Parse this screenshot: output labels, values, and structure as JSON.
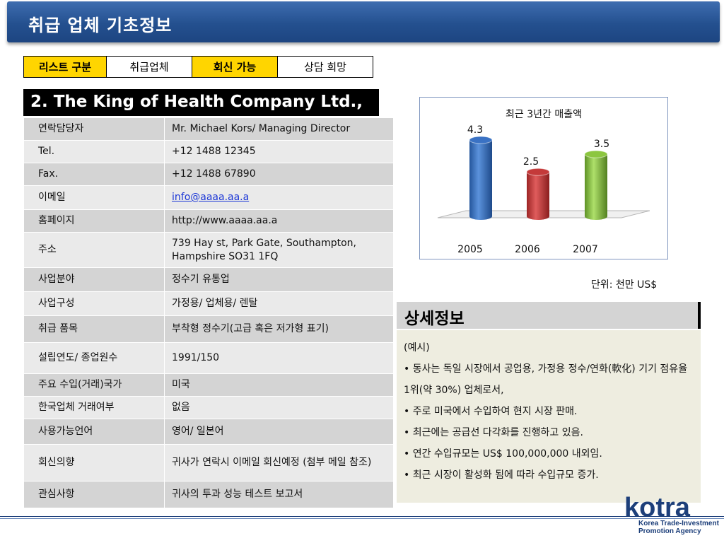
{
  "header": {
    "title": "취급 업체 기초정보"
  },
  "legend": [
    "리스트 구분",
    "취급업체",
    "회신 가능",
    "상담 희망"
  ],
  "company": {
    "title": "2. The King of Health Company Ltd.,"
  },
  "info": [
    {
      "label": "연락담당자",
      "value": "Mr. Michael Kors/ Managing Director"
    },
    {
      "label": "Tel.",
      "value": "+12 1488 12345"
    },
    {
      "label": "Fax.",
      "value": "+12 1488 67890"
    },
    {
      "label": "이메일",
      "value": "info@aaaa.aa.a"
    },
    {
      "label": "홈페이지",
      "value": "http://www.aaaa.aa.a"
    },
    {
      "label": "주소",
      "value": "739 Hay st, Park Gate, Southampton, Hampshire SO31 1FQ"
    },
    {
      "label": "사업분야",
      "value": "정수기 유통업"
    },
    {
      "label": "사업구성",
      "value": "가정용/ 업체용/ 렌탈"
    },
    {
      "label": "취급 품목",
      "value": "부착형 정수기(고급 혹은 저가형 표기)"
    },
    {
      "label": "설립연도/ 종업원수",
      "value": "1991/150"
    },
    {
      "label": "주요 수입(거래)국가",
      "value": "미국"
    },
    {
      "label": "한국업체 거래여부",
      "value": "없음"
    },
    {
      "label": "사용가능언어",
      "value": "영어/ 일본어"
    },
    {
      "label": "회신의향",
      "value": "귀사가 연락시 이메일 회신예정 (첨부 메일 참조)"
    },
    {
      "label": "관심사항",
      "value": "귀사의 투과 성능 테스트 보고서"
    }
  ],
  "chart_data": {
    "type": "bar",
    "title": "최근 3년간 매출액",
    "categories": [
      "2005",
      "2006",
      "2007"
    ],
    "values": [
      4.3,
      2.5,
      3.5
    ],
    "colors": [
      "#3a72c4",
      "#c43a3a",
      "#8cc63f"
    ],
    "ylim": [
      0,
      5
    ],
    "grid": false,
    "legend": "none"
  },
  "unit": "단위: 천만 US$",
  "detail": {
    "heading": "상세정보",
    "lines": [
      "(예시)",
      "• 동사는 독일 시장에서 공업용, 가정용 정수/연화(軟化) 기기 점유율 1위(약 30%) 업체로서,",
      "• 주로 미국에서 수입하여 현지 시장 판매.",
      "• 최근에는 공급선 다각화를 진행하고 있음.",
      "• 연간 수입규모는 US$ 100,000,000 내외임.",
      "• 최근 시장이 활성화 됨에 따라 수입규모 증가."
    ]
  },
  "footer": {
    "logo_text": "kotra",
    "org_line1": "Korea Trade-Investment",
    "org_line2": "Promotion Agency"
  }
}
